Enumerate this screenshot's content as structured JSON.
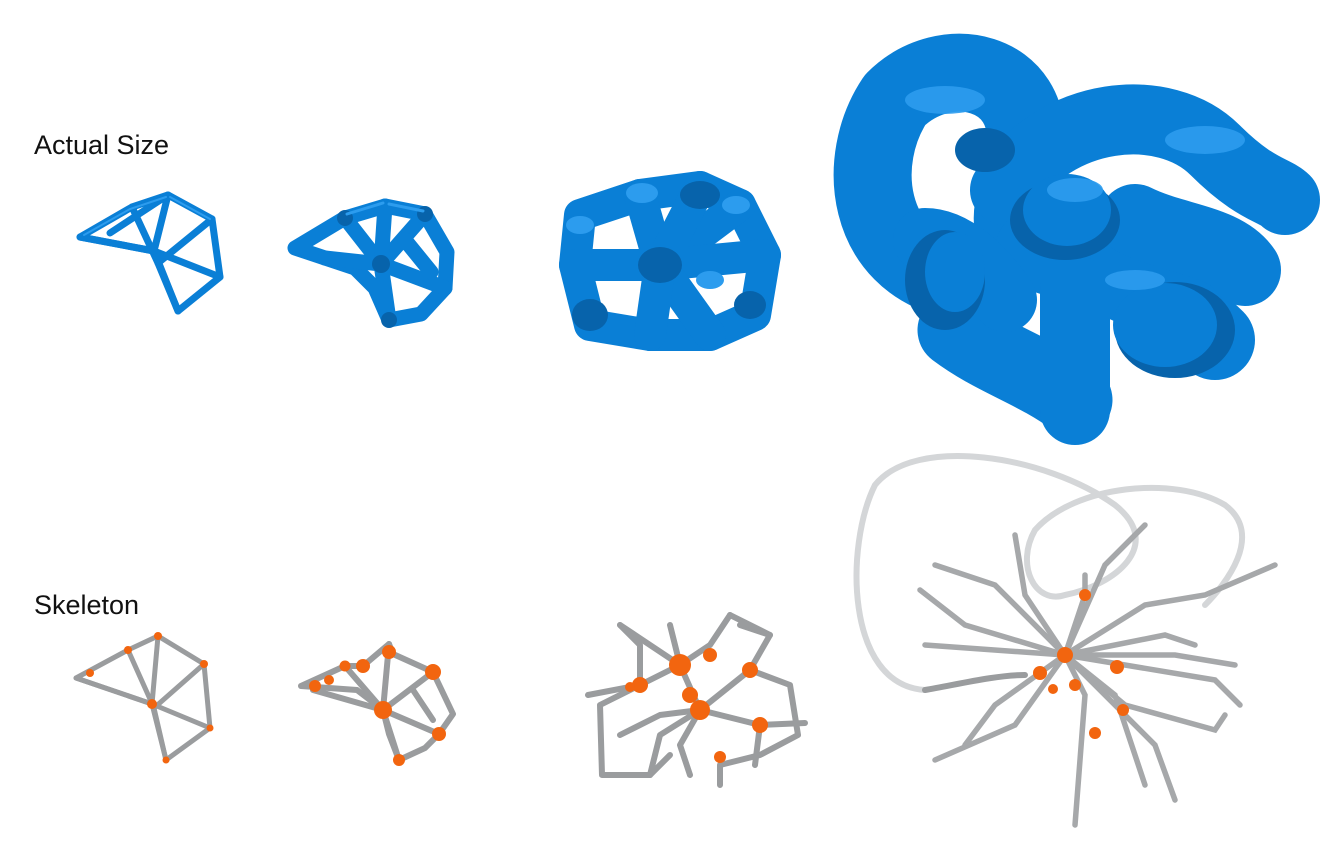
{
  "labels": {
    "actual_size": "Actual Size",
    "skeleton": "Skeleton"
  },
  "colors": {
    "tube_blue": "#0a7fd6",
    "tube_blue_shade": "#0763ab",
    "tube_blue_highlight": "#2c9cee",
    "skeleton_gray": "#9a9c9e",
    "skeleton_gray_light": "#d4d6d8",
    "node_orange": "#f2650f",
    "background": "#ffffff"
  },
  "stages": [
    {
      "name": "stage-1",
      "tube_weight": "thin"
    },
    {
      "name": "stage-2",
      "tube_weight": "medium"
    },
    {
      "name": "stage-3",
      "tube_weight": "thick"
    },
    {
      "name": "stage-4",
      "tube_weight": "very-thick"
    }
  ]
}
